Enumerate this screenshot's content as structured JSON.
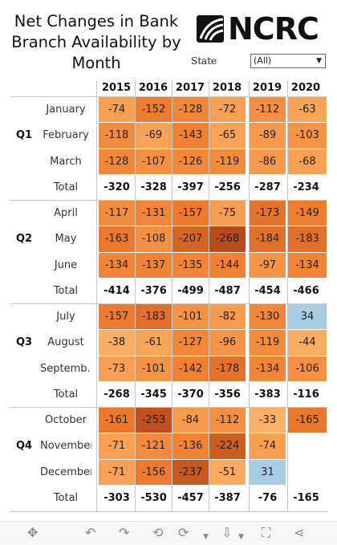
{
  "title": "Net Changes in Bank Branch Availability by Month",
  "brand": "NCRC",
  "filter": {
    "label": "State",
    "value": "(All)"
  },
  "years": [
    "2015",
    "2016",
    "2017",
    "2018",
    "2019",
    "2020"
  ],
  "total_label": "Total",
  "chart_data": {
    "type": "table",
    "quarters": [
      {
        "label": "Q1",
        "months": [
          {
            "name": "January",
            "values": [
              -74,
              -152,
              -128,
              -72,
              -112,
              -63
            ]
          },
          {
            "name": "February",
            "values": [
              -118,
              -69,
              -143,
              -65,
              -89,
              -103
            ]
          },
          {
            "name": "March",
            "values": [
              -128,
              -107,
              -126,
              -119,
              -86,
              -68
            ]
          }
        ],
        "totals": [
          -320,
          -328,
          -397,
          -256,
          -287,
          -234
        ]
      },
      {
        "label": "Q2",
        "months": [
          {
            "name": "April",
            "values": [
              -117,
              -131,
              -157,
              -75,
              -173,
              -149
            ]
          },
          {
            "name": "May",
            "values": [
              -163,
              -108,
              -207,
              -268,
              -184,
              -183
            ]
          },
          {
            "name": "June",
            "values": [
              -134,
              -137,
              -135,
              -144,
              -97,
              -134
            ]
          }
        ],
        "totals": [
          -414,
          -376,
          -499,
          -487,
          -454,
          -466
        ]
      },
      {
        "label": "Q3",
        "months": [
          {
            "name": "July",
            "values": [
              -157,
              -183,
              -101,
              -82,
              -130,
              34
            ]
          },
          {
            "name": "August",
            "values": [
              -38,
              -61,
              -127,
              -96,
              -119,
              -44
            ]
          },
          {
            "name": "Septemb..",
            "values": [
              -73,
              -101,
              -142,
              -178,
              -134,
              -106
            ]
          }
        ],
        "totals": [
          -268,
          -345,
          -370,
          -356,
          -383,
          -116
        ]
      },
      {
        "label": "Q4",
        "months": [
          {
            "name": "October",
            "values": [
              -161,
              -253,
              -84,
              -112,
              -33,
              -165
            ]
          },
          {
            "name": "November",
            "values": [
              -71,
              -121,
              -136,
              -224,
              -74,
              null
            ]
          },
          {
            "name": "December",
            "values": [
              -71,
              -156,
              -237,
              -51,
              31,
              null
            ]
          }
        ],
        "totals": [
          -303,
          -530,
          -457,
          -387,
          -76,
          -165
        ]
      }
    ]
  },
  "colors": {
    "positive": "#a6cde3",
    "negative_light": "#fdb267",
    "negative_mid": "#f07d2e",
    "negative_dark": "#b84a1b",
    "grid": "#c8c8c8"
  },
  "toolbar_icons": [
    "drag-icon",
    "undo-icon",
    "redo-icon",
    "revert-icon",
    "download-icon",
    "fullscreen-icon",
    "share-icon"
  ]
}
